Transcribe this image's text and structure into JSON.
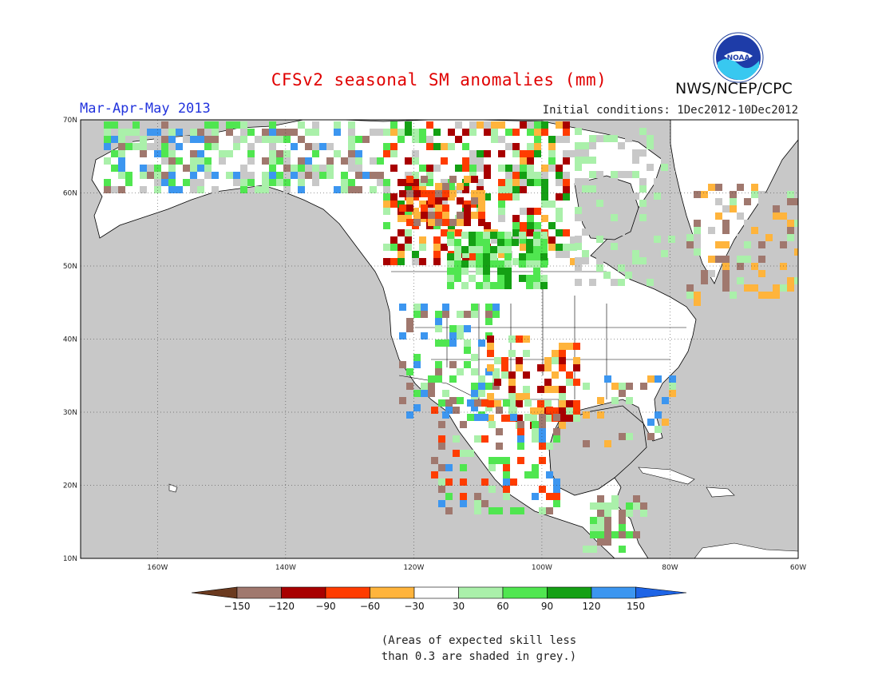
{
  "title": "CFSv2 seasonal SM anomalies (mm)",
  "season": "Mar-Apr-May 2013",
  "initial_conditions": "Initial conditions: 1Dec2012-10Dec2012",
  "agency": "NWS/NCEP/CPC",
  "logo_text": "NOAA",
  "note_line1": "(Areas of expected skill less",
  "note_line2": "than 0.3 are shaded in grey.)",
  "map": {
    "lat_range": [
      10,
      70
    ],
    "lon_range": [
      -172,
      -60
    ],
    "lat_labels": [
      "70N",
      "60N",
      "50N",
      "40N",
      "30N",
      "20N",
      "10N"
    ],
    "lon_labels": [
      "160W",
      "140W",
      "120W",
      "100W",
      "80W",
      "60W"
    ],
    "lat_values": [
      70,
      60,
      50,
      40,
      30,
      20,
      10
    ],
    "lon_values": [
      -160,
      -140,
      -120,
      -100,
      -80,
      -60
    ],
    "ocean_color": "#c8c8c8",
    "land_color": "#ffffff"
  },
  "colorbar": {
    "labels": [
      "-150",
      "-120",
      "-90",
      "-60",
      "-30",
      "30",
      "60",
      "90",
      "120",
      "150"
    ],
    "colors": [
      "#6b3a1f",
      "#a0786e",
      "#a80000",
      "#ff3c00",
      "#ffb43c",
      "#ffffff",
      "#aaf0aa",
      "#50e650",
      "#14a014",
      "#3c96f0",
      "#1e64e6"
    ]
  }
}
